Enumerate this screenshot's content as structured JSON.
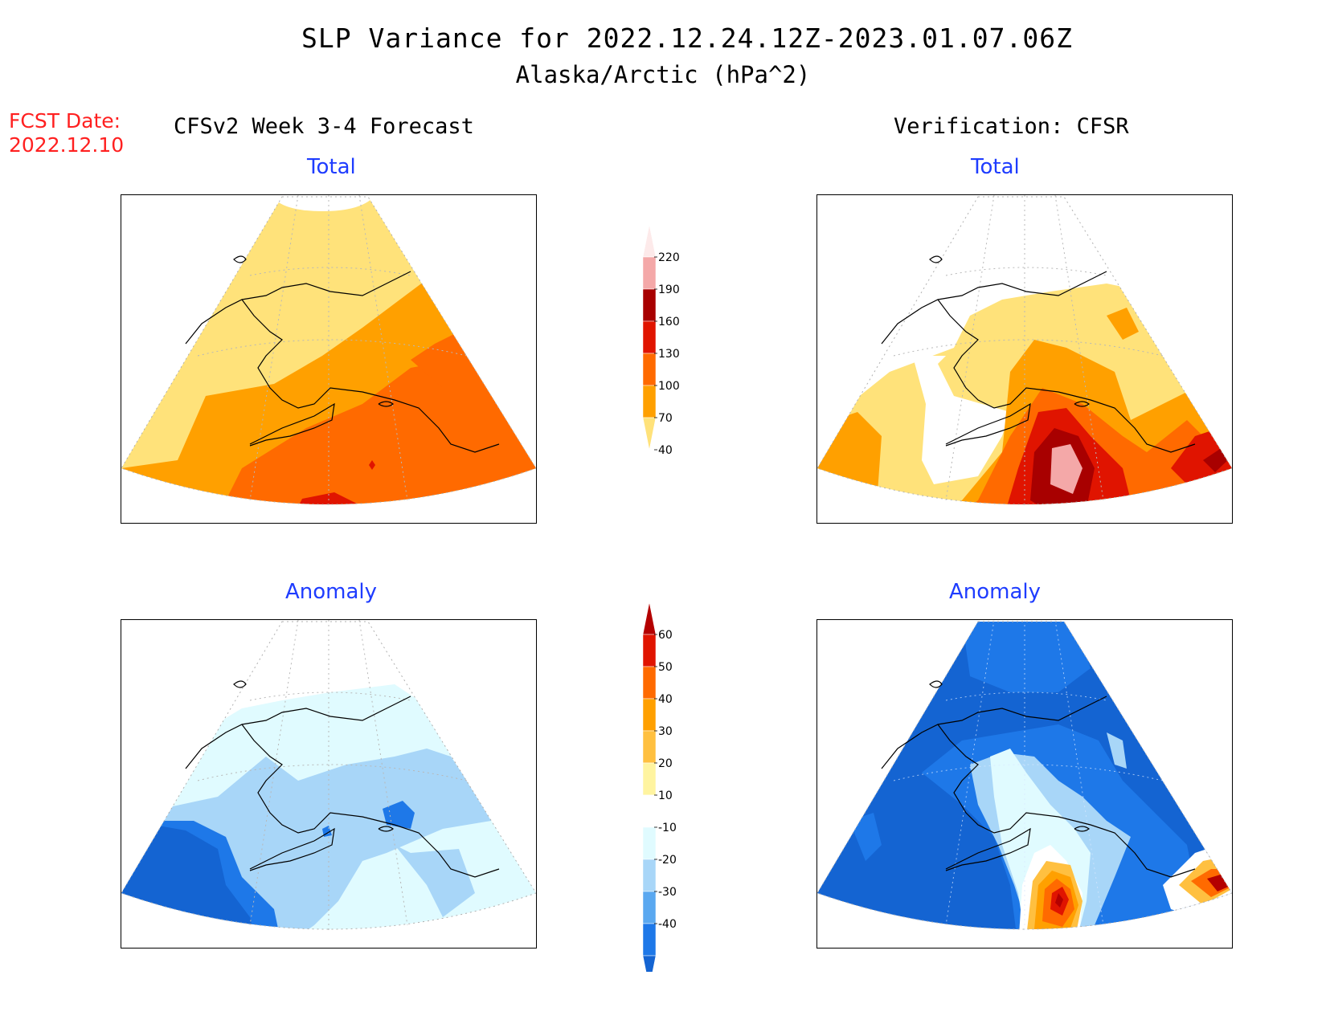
{
  "header": {
    "title_line1": "SLP Variance for 2022.12.24.12Z-2023.01.07.06Z",
    "title_line2": "Alaska/Arctic (hPa^2)",
    "fcst_label": "FCST Date:",
    "fcst_date": "2022.12.10",
    "left_column_title": "CFSv2 Week 3-4 Forecast",
    "right_column_title": "Verification: CFSR"
  },
  "panels": {
    "forecast_total": {
      "label": "Total"
    },
    "verification_total": {
      "label": "Total"
    },
    "forecast_anomaly": {
      "label": "Anomaly"
    },
    "verification_anomaly": {
      "label": "Anomaly"
    }
  },
  "colorbars": {
    "total": {
      "levels": [
        "220",
        "190",
        "160",
        "130",
        "100",
        "70",
        "40"
      ],
      "colors": [
        "#fdeaea",
        "#f4a8a8",
        "#a80000",
        "#e01400",
        "#ff6a00",
        "#ffa000",
        "#ffe27a"
      ]
    },
    "anomaly": {
      "levels": [
        "60",
        "50",
        "40",
        "30",
        "20",
        "10",
        "-10",
        "-20",
        "-30",
        "-40"
      ],
      "colors": [
        "#b40000",
        "#e01400",
        "#ff6a00",
        "#ffa000",
        "#ffc040",
        "#fff4a0",
        "#ffffff",
        "#e0fbff",
        "#a8d6f8",
        "#5aa8f0",
        "#1e78e8",
        "#1464d2"
      ]
    }
  },
  "colors": {
    "title_blue": "#1e3cff",
    "fcst_red": "#ff2020"
  }
}
